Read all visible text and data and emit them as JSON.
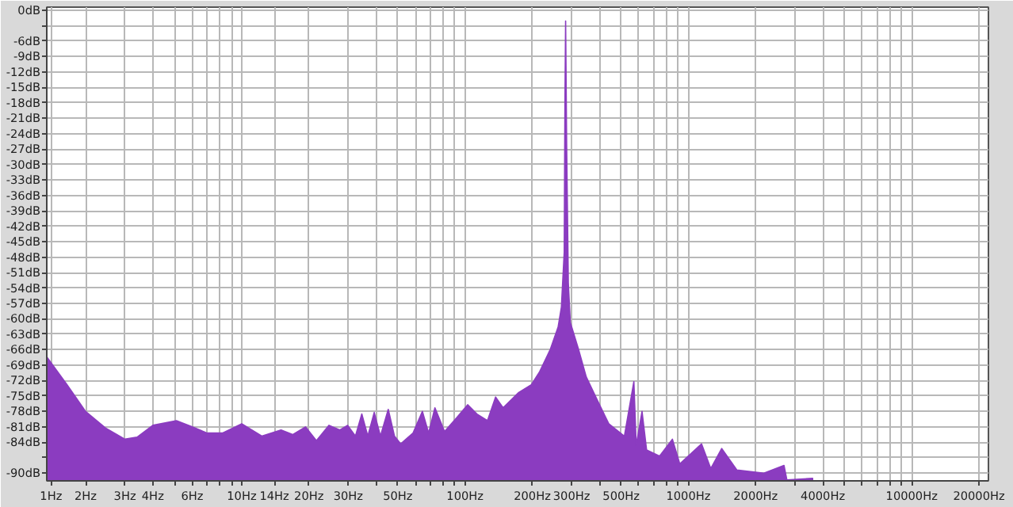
{
  "chart_data": {
    "type": "area",
    "color": "#8b3cc0",
    "x": [
      1.34,
      1.65,
      2,
      2.47,
      3,
      3.4,
      4,
      5.1,
      6,
      7,
      8.2,
      10,
      12.3,
      15,
      16.9,
      19.3,
      21.6,
      24.6,
      27.5,
      29.8,
      32.3,
      34.5,
      36.7,
      39.2,
      41.8,
      45.3,
      48.3,
      51.5,
      58.5,
      64.4,
      68.7,
      73.3,
      80.9,
      91.9,
      102.7,
      113,
      126,
      137,
      148,
      174,
      198,
      215,
      241,
      261,
      270,
      278,
      280,
      282,
      285,
      290,
      296,
      322,
      349,
      391,
      440,
      517,
      570,
      584,
      620,
      650,
      743,
      848,
      915,
      1145,
      1260,
      1410,
      1650,
      2180,
      2680,
      2760,
      3600
    ],
    "values": [
      -67.4,
      -72.8,
      -78,
      -81.3,
      -83.4,
      -83,
      -80.7,
      -79.8,
      -81,
      -82.2,
      -82.2,
      -80.4,
      -82.8,
      -81.6,
      -82.5,
      -81,
      -83.7,
      -80.7,
      -81.6,
      -80.7,
      -82.8,
      -78.5,
      -82.8,
      -78.2,
      -82.8,
      -77.6,
      -82.8,
      -84.3,
      -82.2,
      -78,
      -82.2,
      -77.3,
      -81.9,
      -79.2,
      -76.7,
      -78.5,
      -79.8,
      -75.2,
      -77.3,
      -74.3,
      -72.8,
      -70.4,
      -65.9,
      -61.6,
      -57.7,
      -47,
      -18.4,
      -2.1,
      -26,
      -53,
      -60.7,
      -65.9,
      -71.3,
      -75.8,
      -80.4,
      -82.8,
      -72.2,
      -84.6,
      -78,
      -85.5,
      -86.7,
      -83.4,
      -88.2,
      -84.3,
      -89.1,
      -85.2,
      -89.4,
      -90,
      -88.5,
      -91.3,
      -91
    ],
    "log": "x",
    "grid": true,
    "xlim": [
      1.34,
      22050
    ],
    "ylim": [
      -91.5,
      0.6
    ],
    "xticks": [
      {
        "value": 1.4,
        "label": "1Hz"
      },
      {
        "value": 2,
        "label": "2Hz"
      },
      {
        "value": 3,
        "label": "3Hz"
      },
      {
        "value": 4,
        "label": "4Hz"
      },
      {
        "value": 5,
        "label": null
      },
      {
        "value": 6,
        "label": "6Hz"
      },
      {
        "value": 7,
        "label": null
      },
      {
        "value": 8,
        "label": null
      },
      {
        "value": 9,
        "label": null
      },
      {
        "value": 10,
        "label": "10Hz"
      },
      {
        "value": 14,
        "label": "14Hz"
      },
      {
        "value": 20,
        "label": "20Hz"
      },
      {
        "value": 30,
        "label": "30Hz"
      },
      {
        "value": 40,
        "label": null
      },
      {
        "value": 50,
        "label": "50Hz"
      },
      {
        "value": 60,
        "label": null
      },
      {
        "value": 70,
        "label": null
      },
      {
        "value": 80,
        "label": null
      },
      {
        "value": 90,
        "label": null
      },
      {
        "value": 100,
        "label": "100Hz"
      },
      {
        "value": 200,
        "label": "200Hz"
      },
      {
        "value": 300,
        "label": "300Hz"
      },
      {
        "value": 400,
        "label": null
      },
      {
        "value": 500,
        "label": "500Hz"
      },
      {
        "value": 600,
        "label": null
      },
      {
        "value": 700,
        "label": null
      },
      {
        "value": 800,
        "label": null
      },
      {
        "value": 900,
        "label": null
      },
      {
        "value": 1000,
        "label": "1000Hz"
      },
      {
        "value": 2000,
        "label": "2000Hz"
      },
      {
        "value": 3000,
        "label": null
      },
      {
        "value": 4000,
        "label": "4000Hz"
      },
      {
        "value": 5000,
        "label": null
      },
      {
        "value": 6000,
        "label": null
      },
      {
        "value": 7000,
        "label": null
      },
      {
        "value": 8000,
        "label": null
      },
      {
        "value": 9000,
        "label": null
      },
      {
        "value": 10000,
        "label": "10000Hz"
      },
      {
        "value": 20000,
        "label": "20000Hz"
      }
    ],
    "yticks": [
      {
        "value": 0,
        "label": "0dB"
      },
      {
        "value": -3,
        "label": null
      },
      {
        "value": -6,
        "label": "-6dB"
      },
      {
        "value": -9,
        "label": "-9dB"
      },
      {
        "value": -12,
        "label": "-12dB"
      },
      {
        "value": -15,
        "label": "-15dB"
      },
      {
        "value": -18,
        "label": "-18dB"
      },
      {
        "value": -21,
        "label": "-21dB"
      },
      {
        "value": -24,
        "label": "-24dB"
      },
      {
        "value": -27,
        "label": "-27dB"
      },
      {
        "value": -30,
        "label": "-30dB"
      },
      {
        "value": -33,
        "label": "-33dB"
      },
      {
        "value": -36,
        "label": "-36dB"
      },
      {
        "value": -39,
        "label": "-39dB"
      },
      {
        "value": -42,
        "label": "-42dB"
      },
      {
        "value": -45,
        "label": "-45dB"
      },
      {
        "value": -48,
        "label": "-48dB"
      },
      {
        "value": -51,
        "label": "-51dB"
      },
      {
        "value": -54,
        "label": "-54dB"
      },
      {
        "value": -57,
        "label": "-57dB"
      },
      {
        "value": -60,
        "label": "-60dB"
      },
      {
        "value": -63,
        "label": "-63dB"
      },
      {
        "value": -66,
        "label": "-66dB"
      },
      {
        "value": -69,
        "label": "-69dB"
      },
      {
        "value": -72,
        "label": "-72dB"
      },
      {
        "value": -75,
        "label": "-75dB"
      },
      {
        "value": -78,
        "label": "-78dB"
      },
      {
        "value": -81,
        "label": "-81dB"
      },
      {
        "value": -84,
        "label": "-84dB"
      },
      {
        "value": -87,
        "label": null
      },
      {
        "value": -90,
        "label": "-90dB"
      }
    ]
  }
}
